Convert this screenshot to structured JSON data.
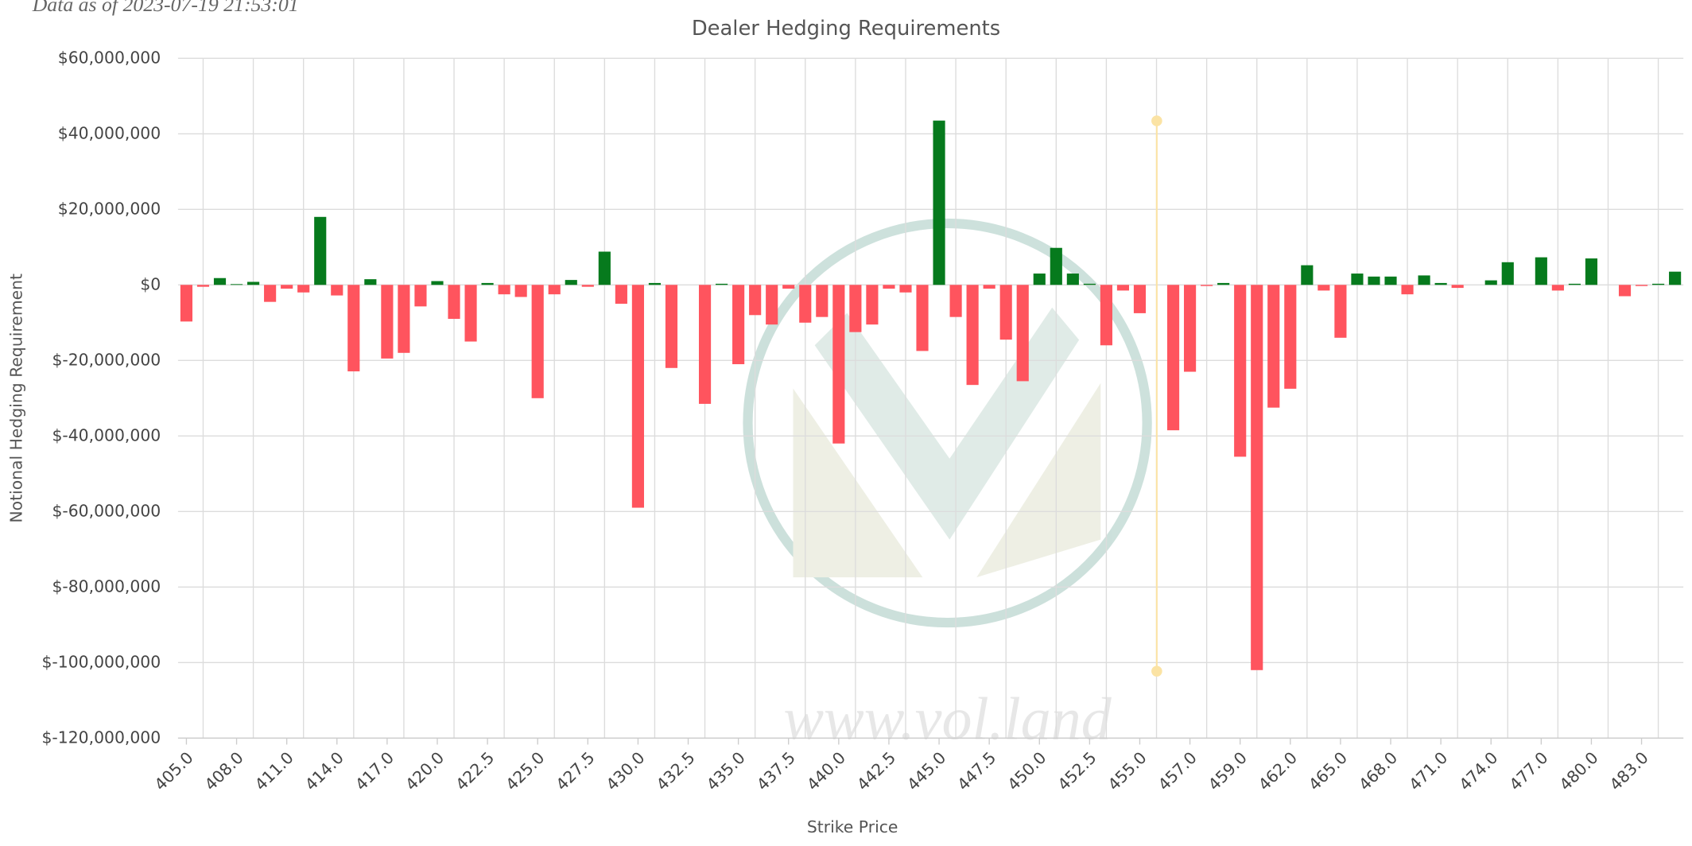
{
  "note_header": "Data as of 2023-07-19 21:53:01",
  "watermark": "www.vol.land",
  "chart_data": {
    "type": "bar",
    "title": "Dealer Hedging Requirements",
    "x_label": "Strike Price",
    "y_label": "Notional Hedging Requirement",
    "categories": [
      "405.0",
      null,
      null,
      "408.0",
      null,
      null,
      "411.0",
      null,
      null,
      "414.0",
      null,
      null,
      "417.0",
      null,
      null,
      "420.0",
      null,
      null,
      "422.5",
      null,
      null,
      "425.0",
      null,
      null,
      "427.5",
      null,
      null,
      "430.0",
      null,
      null,
      "432.5",
      null,
      null,
      "435.0",
      null,
      null,
      "437.5",
      null,
      null,
      "440.0",
      null,
      null,
      "442.5",
      null,
      null,
      "445.0",
      null,
      null,
      "447.5",
      null,
      null,
      "450.0",
      null,
      null,
      "452.5",
      null,
      null,
      "455.0",
      null,
      null,
      "457.0",
      null,
      null,
      "459.0",
      null,
      null,
      "462.0",
      null,
      null,
      "465.0",
      null,
      null,
      "468.0",
      null,
      null,
      "471.0",
      null,
      null,
      "474.0",
      null,
      null,
      "477.0",
      null,
      null,
      "480.0",
      null,
      null,
      "483.0",
      null,
      null
    ],
    "values": [
      -9700000,
      -500000,
      1800000,
      200000,
      800000,
      -4500000,
      -1000000,
      -2000000,
      18000000,
      -2800000,
      -22900000,
      1500000,
      -19500000,
      -18000000,
      -5700000,
      1000000,
      -9000000,
      -15000000,
      500000,
      -2500000,
      -3200000,
      -30000000,
      -2500000,
      1300000,
      -500000,
      8800000,
      -5000000,
      -59000000,
      500000,
      -22000000,
      0,
      -31500000,
      300000,
      -21000000,
      -8000000,
      -10500000,
      -1000000,
      -10000000,
      -8500000,
      -42000000,
      -12500000,
      -10500000,
      -1000000,
      -2000000,
      -17500000,
      43500000,
      -8500000,
      -26500000,
      -1000000,
      -14500000,
      -25500000,
      3000000,
      9800000,
      3000000,
      300000,
      -16000000,
      -1500000,
      -7500000,
      0,
      -38500000,
      -23000000,
      -300000,
      500000,
      -45500000,
      -102000000,
      -32500000,
      -27500000,
      5200000,
      -1500000,
      -14000000,
      3000000,
      2200000,
      2200000,
      -2500000,
      2500000,
      500000,
      -800000,
      0,
      1200000,
      6000000,
      0,
      7300000,
      -1500000,
      300000,
      7000000,
      0,
      -3000000,
      -300000,
      300000,
      3500000
    ],
    "positive_color": "#067a1d",
    "negative_color": "#ff545e",
    "ylim": [
      -120000000,
      60000000
    ],
    "yticks": [
      {
        "value": -120000000,
        "label": "$-120,000,000"
      },
      {
        "value": -100000000,
        "label": "$-100,000,000"
      },
      {
        "value": -80000000,
        "label": "$-80,000,000"
      },
      {
        "value": -60000000,
        "label": "$-60,000,000"
      },
      {
        "value": -40000000,
        "label": "$-40,000,000"
      },
      {
        "value": -20000000,
        "label": "$-20,000,000"
      },
      {
        "value": 0,
        "label": "$0"
      },
      {
        "value": 20000000,
        "label": "$20,000,000"
      },
      {
        "value": 40000000,
        "label": "$40,000,000"
      },
      {
        "value": 60000000,
        "label": "$60,000,000"
      }
    ],
    "grid": true
  }
}
